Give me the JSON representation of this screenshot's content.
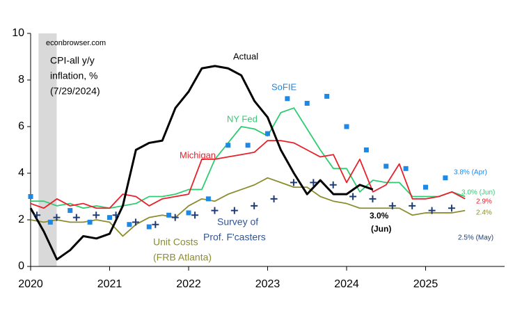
{
  "chart_data": {
    "type": "line",
    "xlim": [
      2020,
      2026
    ],
    "xticks": [
      2020,
      2021,
      2022,
      2023,
      2024,
      2025
    ],
    "ylim": [
      0,
      10
    ],
    "yticks": [
      0,
      2,
      4,
      6,
      8,
      10
    ],
    "shade_x": [
      2020.1,
      2020.33
    ],
    "annotations": [
      {
        "text": "econbrowser.com",
        "color": "#000000"
      },
      {
        "text": "CPI-all y/y",
        "color": "#000000"
      },
      {
        "text": "inflation, %",
        "color": "#000000"
      },
      {
        "text": "(7/29/2024)",
        "color": "#000000"
      },
      {
        "text": "Actual",
        "color": "#000000"
      },
      {
        "text": "SoFIE",
        "color": "#1e88e5"
      },
      {
        "text": "NY Fed",
        "color": "#2ecc71"
      },
      {
        "text": "Michigan",
        "color": "#e8202a"
      },
      {
        "text": "Survey of",
        "color": "#2f5597"
      },
      {
        "text": "Prof. F'casters",
        "color": "#2f5597"
      },
      {
        "text": "Unit Costs",
        "color": "#8c8c2e"
      },
      {
        "text": "(FRB Atlanta)",
        "color": "#8c8c2e"
      },
      {
        "text": "3.0%",
        "color": "#000000"
      },
      {
        "text": "(Jun)",
        "color": "#000000"
      },
      {
        "text": "3.8% (Apr)",
        "color": "#1e88e5"
      },
      {
        "text": "3.0% (Jun)",
        "color": "#2ecc71"
      },
      {
        "text": "2.9%",
        "color": "#e8202a"
      },
      {
        "text": "2.4%",
        "color": "#8c8c2e"
      },
      {
        "text": "2.5% (May)",
        "color": "#1f3b73"
      }
    ],
    "series": [
      {
        "name": "Unit Costs",
        "style": "line",
        "color": "#8c8c2e",
        "x": [
          2020,
          2020.167,
          2020.333,
          2020.5,
          2020.667,
          2020.833,
          2021,
          2021.167,
          2021.333,
          2021.5,
          2021.667,
          2021.833,
          2022,
          2022.167,
          2022.333,
          2022.5,
          2022.667,
          2022.833,
          2023,
          2023.167,
          2023.333,
          2023.5,
          2023.667,
          2023.833,
          2024,
          2024.167,
          2024.333,
          2024.5,
          2024.667,
          2024.833,
          2025,
          2025.167,
          2025.333,
          2025.5
        ],
        "values": [
          2.0,
          1.9,
          2.0,
          1.9,
          1.9,
          2.0,
          1.9,
          1.3,
          1.8,
          2.1,
          2.2,
          2.1,
          2.6,
          2.9,
          2.8,
          3.1,
          3.3,
          3.5,
          3.8,
          3.6,
          3.4,
          3.4,
          3.0,
          2.8,
          2.7,
          2.5,
          2.5,
          2.5,
          2.5,
          2.2,
          2.3,
          2.3,
          2.3,
          2.4
        ]
      },
      {
        "name": "NY Fed",
        "style": "line",
        "color": "#2ecc71",
        "x": [
          2020,
          2020.167,
          2020.333,
          2020.5,
          2020.667,
          2020.833,
          2021,
          2021.167,
          2021.333,
          2021.5,
          2021.667,
          2021.833,
          2022,
          2022.167,
          2022.333,
          2022.5,
          2022.667,
          2022.833,
          2023,
          2023.167,
          2023.333,
          2023.5,
          2023.667,
          2023.833,
          2024,
          2024.167,
          2024.333,
          2024.5,
          2024.667,
          2024.833,
          2025,
          2025.167,
          2025.333,
          2025.5
        ],
        "values": [
          2.8,
          2.8,
          2.6,
          2.7,
          2.5,
          2.6,
          2.5,
          2.6,
          2.7,
          3.0,
          3.0,
          3.1,
          3.3,
          3.3,
          4.6,
          5.3,
          6.0,
          5.9,
          5.6,
          6.6,
          6.8,
          5.9,
          5.0,
          4.2,
          4.2,
          3.2,
          3.7,
          3.6,
          3.6,
          3.0,
          3.0,
          3.0,
          3.2,
          3.0
        ]
      },
      {
        "name": "Michigan",
        "style": "line",
        "color": "#e8202a",
        "x": [
          2020,
          2020.167,
          2020.333,
          2020.5,
          2020.667,
          2020.833,
          2021,
          2021.167,
          2021.333,
          2021.5,
          2021.667,
          2021.833,
          2022,
          2022.167,
          2022.333,
          2022.5,
          2022.667,
          2022.833,
          2023,
          2023.167,
          2023.333,
          2023.5,
          2023.667,
          2023.833,
          2024,
          2024.167,
          2024.333,
          2024.5,
          2024.667,
          2024.833,
          2025,
          2025.167,
          2025.333,
          2025.5
        ],
        "values": [
          2.7,
          2.5,
          2.9,
          2.6,
          2.7,
          2.5,
          2.5,
          3.1,
          3.0,
          2.6,
          2.9,
          3.0,
          3.1,
          4.6,
          4.6,
          4.7,
          4.8,
          4.9,
          5.4,
          5.4,
          5.3,
          5.0,
          4.7,
          4.8,
          3.6,
          4.6,
          3.2,
          3.5,
          4.4,
          2.9,
          2.9,
          3.0,
          3.2,
          2.9
        ]
      },
      {
        "name": "Actual",
        "style": "line",
        "color": "#000000",
        "x": [
          2020,
          2020.167,
          2020.333,
          2020.5,
          2020.667,
          2020.833,
          2021,
          2021.167,
          2021.333,
          2021.5,
          2021.667,
          2021.833,
          2022,
          2022.167,
          2022.333,
          2022.5,
          2022.667,
          2022.833,
          2023,
          2023.167,
          2023.333,
          2023.5,
          2023.667,
          2023.833,
          2024,
          2024.167,
          2024.333
        ],
        "values": [
          2.5,
          1.5,
          0.3,
          0.7,
          1.3,
          1.2,
          1.4,
          2.6,
          5.0,
          5.3,
          5.4,
          6.8,
          7.5,
          8.5,
          8.6,
          8.5,
          8.2,
          7.1,
          6.4,
          5.0,
          4.0,
          3.1,
          3.7,
          3.1,
          3.1,
          3.5,
          3.3
        ]
      },
      {
        "name": "SoFIE",
        "style": "square",
        "color": "#1e88e5",
        "x": [
          2020,
          2020.25,
          2020.5,
          2020.75,
          2021,
          2021.25,
          2021.5,
          2021.75,
          2022,
          2022.25,
          2022.5,
          2022.75,
          2023,
          2023.25,
          2023.5,
          2023.75,
          2024,
          2024.25,
          2024.5,
          2024.75,
          2025,
          2025.25
        ],
        "values": [
          3.0,
          1.9,
          2.4,
          1.9,
          2.1,
          1.8,
          1.7,
          2.2,
          2.3,
          2.9,
          5.2,
          5.2,
          5.7,
          7.2,
          7.0,
          7.3,
          6.0,
          5.0,
          4.3,
          4.2,
          3.4,
          3.8
        ]
      },
      {
        "name": "Survey of Prof. F'casters",
        "style": "plus",
        "color": "#1f3b73",
        "x": [
          2020.08,
          2020.33,
          2020.58,
          2020.83,
          2021.08,
          2021.33,
          2021.58,
          2021.83,
          2022.08,
          2022.33,
          2022.58,
          2022.83,
          2023.08,
          2023.33,
          2023.58,
          2023.83,
          2024.08,
          2024.33,
          2024.58,
          2024.83,
          2025.08,
          2025.33
        ],
        "values": [
          2.2,
          2.1,
          2.1,
          2.2,
          2.2,
          1.9,
          1.8,
          2.1,
          2.2,
          2.4,
          2.4,
          2.6,
          2.9,
          3.6,
          3.6,
          3.5,
          3.0,
          2.9,
          2.6,
          2.6,
          2.4,
          2.5
        ]
      }
    ]
  }
}
